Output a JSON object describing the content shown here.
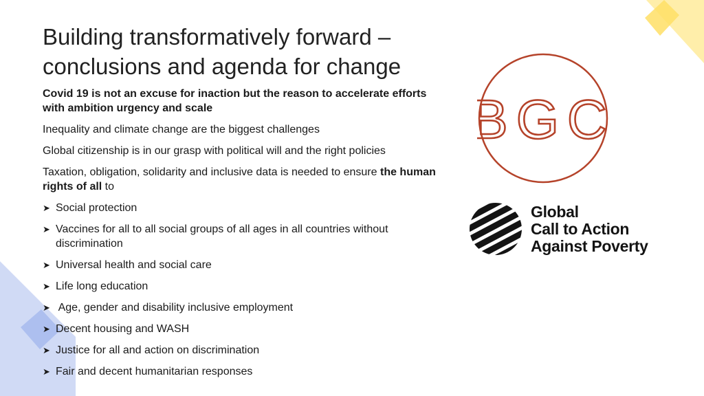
{
  "title": {
    "line1": "Building transformatively forward –",
    "line2": "conclusions and agenda for change"
  },
  "paragraphs": {
    "p1": "Covid 19 is not an excuse for inaction but the reason to accelerate efforts with ambition urgency and scale",
    "p2": "Inequality and climate change are the biggest challenges",
    "p3": "Global citizenship is in our grasp with political will and the right policies",
    "p4_before": "Taxation, obligation, solidarity and inclusive data is needed to ensure ",
    "p4_bold": "the human rights of all",
    "p4_after": " to"
  },
  "bullets": [
    "Social protection",
    "Vaccines for all to all social groups of all ages in all countries without discrimination",
    "Universal health and social care",
    "Life long education",
    " Age, gender and disability inclusive employment",
    "Decent housing and WASH",
    "Justice for all and action on discrimination",
    "Fair and decent humanitarian responses"
  ],
  "logos": {
    "bgc": {
      "text": "BGC",
      "color": "#b5432a"
    },
    "gcap": {
      "line1": "Global",
      "line2": "Call to Action",
      "line3": "Against Poverty",
      "color": "#141414"
    }
  },
  "icons": {
    "bullet": "arrow-bullet-icon"
  },
  "colors": {
    "accent_yellow": "#ffe99a",
    "accent_yellow_deep": "#ffd84a",
    "accent_blue": "#c5d2f2",
    "accent_blue_deep": "#9fb3ea"
  }
}
